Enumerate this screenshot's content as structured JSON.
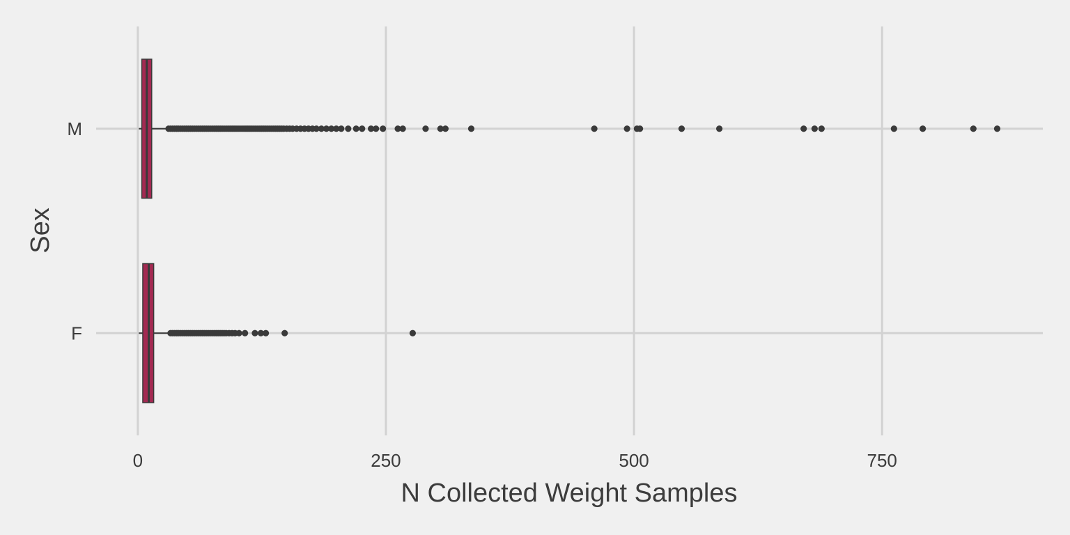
{
  "chart_data": {
    "type": "boxplot",
    "orientation": "horizontal",
    "title": "",
    "xlabel": "N Collected Weight Samples",
    "ylabel": "Sex",
    "xlim": [
      -42,
      912
    ],
    "x_ticks": [
      0,
      250,
      500,
      750
    ],
    "categories": [
      "F",
      "M"
    ],
    "grid": true,
    "colors": {
      "background": "#f0f0f0",
      "grid": "#d2d2d2",
      "box_fill": "#a32a52",
      "box_border": "#3a3a3a",
      "outlier": "#3a3a3a",
      "text": "#3c3c3c"
    },
    "series": [
      {
        "category": "M",
        "min": 1,
        "q1": 4,
        "median": 9,
        "q3": 14,
        "max": 30,
        "outliers": [
          31,
          33,
          35,
          37,
          39,
          41,
          43,
          45,
          47,
          49,
          51,
          53,
          55,
          57,
          59,
          61,
          63,
          65,
          67,
          69,
          71,
          73,
          75,
          77,
          79,
          81,
          83,
          85,
          87,
          89,
          91,
          93,
          95,
          97,
          99,
          101,
          103,
          105,
          107,
          109,
          111,
          113,
          115,
          117,
          119,
          121,
          123,
          125,
          127,
          129,
          131,
          133,
          135,
          137,
          139,
          141,
          143,
          145,
          147,
          150,
          153,
          156,
          160,
          164,
          168,
          172,
          176,
          180,
          185,
          190,
          195,
          200,
          205,
          212,
          220,
          226,
          235,
          240,
          247,
          262,
          267,
          290,
          305,
          310,
          336,
          460,
          493,
          503,
          506,
          548,
          586,
          671,
          682,
          689,
          762,
          791,
          842,
          866
        ]
      },
      {
        "category": "F",
        "min": 1,
        "q1": 5,
        "median": 11,
        "q3": 16,
        "max": 32,
        "outliers": [
          33,
          35,
          37,
          39,
          41,
          43,
          45,
          47,
          49,
          51,
          53,
          55,
          57,
          59,
          61,
          63,
          65,
          67,
          69,
          71,
          73,
          75,
          77,
          79,
          81,
          83,
          85,
          87,
          89,
          92,
          95,
          98,
          102,
          108,
          118,
          124,
          129,
          148,
          277
        ]
      }
    ]
  }
}
